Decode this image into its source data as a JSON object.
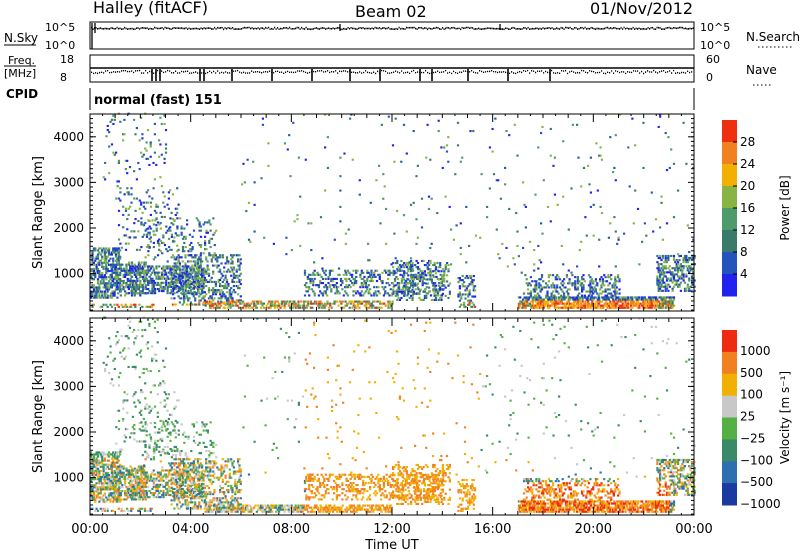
{
  "header": {
    "station": "Halley (fitACF)",
    "beam": "Beam 02",
    "date": "01/Nov/2012"
  },
  "top_panels": {
    "nsky_label": "N.Sky",
    "nsky_ticks": [
      "10^5",
      "10^0"
    ],
    "nsearch_label": "N.Search",
    "nsearch_ticks": [
      "10^5",
      "10^0"
    ],
    "freq_label": "Freq.",
    "freq_unit": "[MHz]",
    "freq_ticks": [
      "18",
      "8"
    ],
    "nave_label": "Nave",
    "nave_ticks": [
      "60",
      "0"
    ],
    "cpid_label": "CPID",
    "cpid_value": "normal (fast) 151"
  },
  "chart_data": [
    {
      "type": "heatmap",
      "quantity": "Power",
      "ylabel": "Slant Range [km]",
      "colorbar_label": "Power [dB]",
      "ylim": [
        180,
        4500
      ],
      "yticks": [
        1000,
        2000,
        3000,
        4000
      ],
      "xlim_hours": [
        0,
        24
      ],
      "xtick_labels": [
        "00:00",
        "04:00",
        "08:00",
        "12:00",
        "16:00",
        "20:00",
        "00:00"
      ],
      "colorbar_ticks": [
        4,
        8,
        12,
        16,
        20,
        24,
        28
      ],
      "colorbar_range": [
        0,
        32
      ],
      "colors": [
        "#2222ee",
        "#2255bb",
        "#3a7a6a",
        "#4e9a6a",
        "#88b444",
        "#f4b000",
        "#f08020",
        "#ee3010"
      ]
    },
    {
      "type": "heatmap",
      "quantity": "Velocity",
      "ylabel": "Slant Range [km]",
      "xlabel": "Time UT",
      "colorbar_label": "Velocity [m s⁻¹]",
      "ylim": [
        180,
        4500
      ],
      "yticks": [
        1000,
        2000,
        3000,
        4000
      ],
      "xlim_hours": [
        0,
        24
      ],
      "xtick_labels": [
        "00:00",
        "04:00",
        "08:00",
        "12:00",
        "16:00",
        "20:00",
        "00:00"
      ],
      "colorbar_ticks": [
        "1000",
        "500",
        "100",
        "25",
        "−25",
        "−100",
        "−500",
        "−1000"
      ],
      "colors": [
        "#1a3aa0",
        "#2e6fb0",
        "#3a8a6a",
        "#55b044",
        "#c8c8c8",
        "#f2b000",
        "#f08020",
        "#ee2a10"
      ]
    }
  ]
}
